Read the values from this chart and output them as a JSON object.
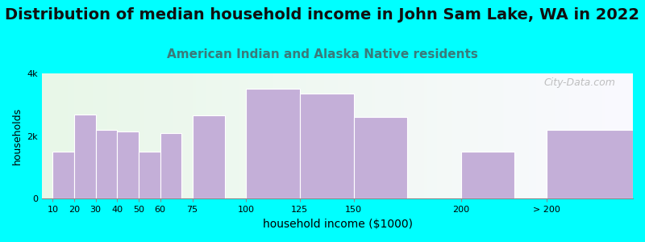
{
  "title": "Distribution of median household income in John Sam Lake, WA in 2022",
  "subtitle": "American Indian and Alaska Native residents",
  "xlabel": "household income ($1000)",
  "ylabel": "households",
  "background_outer": "#00FFFF",
  "bar_color": "#c4afd8",
  "bar_edge_color": "#ffffff",
  "categories": [
    "10",
    "20",
    "30",
    "40",
    "50",
    "60",
    "75",
    "100",
    "125",
    "150",
    "200",
    "> 200"
  ],
  "x_positions": [
    10,
    20,
    30,
    40,
    50,
    60,
    75,
    100,
    125,
    150,
    200,
    240
  ],
  "bar_widths": [
    10,
    10,
    10,
    10,
    10,
    10,
    15,
    25,
    25,
    25,
    25,
    40
  ],
  "values": [
    1500,
    2700,
    2200,
    2150,
    1500,
    2100,
    2650,
    3500,
    3350,
    2600,
    1500,
    2200
  ],
  "ylim": [
    0,
    4000
  ],
  "yticks": [
    0,
    2000,
    4000
  ],
  "ytick_labels": [
    "0",
    "2k",
    "4k"
  ],
  "title_fontsize": 14,
  "subtitle_fontsize": 11,
  "subtitle_color": "#3a7a7a",
  "watermark_text": "City-Data.com",
  "watermark_color": "#b0b0b0",
  "xlim": [
    5,
    280
  ]
}
